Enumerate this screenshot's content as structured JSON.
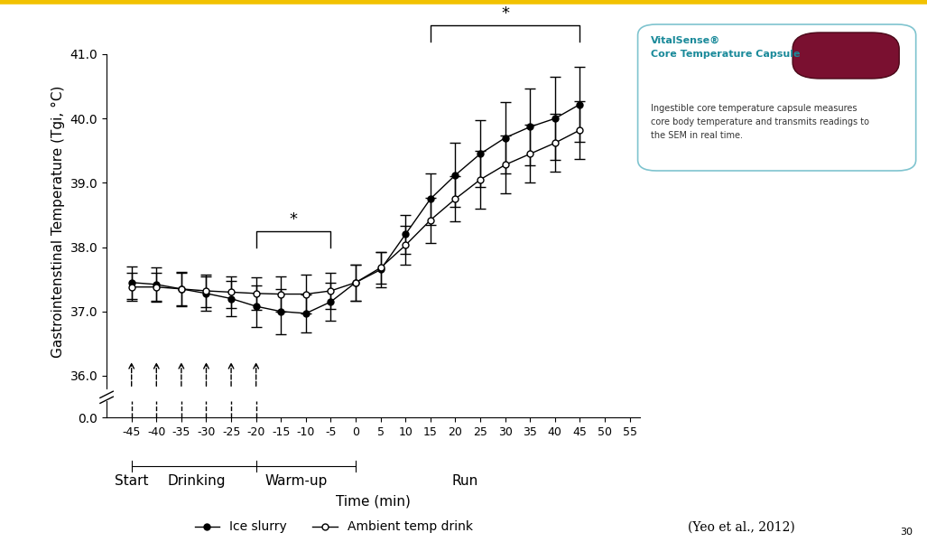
{
  "chart_data": {
    "type": "line",
    "ylabel": "Gastrointenstinal Temperature (Tgi, °C)",
    "xlabel": "Time (min)",
    "x": [
      -45,
      -40,
      -35,
      -30,
      -25,
      -20,
      -15,
      -10,
      -5,
      0,
      5,
      10,
      15,
      20,
      25,
      30,
      35,
      40,
      45
    ],
    "series": [
      {
        "name": "Ice slurry",
        "color": "#000000",
        "marker": "filled_circle",
        "line_style": "solid",
        "values": [
          37.45,
          37.42,
          37.35,
          37.28,
          37.2,
          37.08,
          37.0,
          36.97,
          37.15,
          37.45,
          37.65,
          38.2,
          38.75,
          39.12,
          39.45,
          39.7,
          39.87,
          40.0,
          40.22
        ],
        "errors": [
          0.25,
          0.27,
          0.27,
          0.27,
          0.28,
          0.32,
          0.35,
          0.3,
          0.3,
          0.28,
          0.28,
          0.3,
          0.4,
          0.5,
          0.52,
          0.55,
          0.6,
          0.65,
          0.58
        ]
      },
      {
        "name": "Ambient temp drink",
        "color": "#000000",
        "marker": "open_circle",
        "line_style": "solid",
        "values": [
          37.38,
          37.38,
          37.35,
          37.32,
          37.3,
          37.28,
          37.27,
          37.27,
          37.32,
          37.45,
          37.68,
          38.03,
          38.42,
          38.75,
          39.05,
          39.28,
          39.45,
          39.62,
          39.82
        ],
        "errors": [
          0.22,
          0.22,
          0.25,
          0.25,
          0.25,
          0.25,
          0.28,
          0.3,
          0.28,
          0.28,
          0.25,
          0.3,
          0.35,
          0.35,
          0.45,
          0.45,
          0.45,
          0.45,
          0.45
        ]
      }
    ],
    "xlim": [
      -50,
      57
    ],
    "xticks": [
      -45,
      -40,
      -35,
      -30,
      -25,
      -20,
      -15,
      -10,
      -5,
      0,
      5,
      10,
      15,
      20,
      25,
      30,
      35,
      40,
      45,
      50,
      55
    ],
    "ylim": [
      35.8,
      41.0
    ],
    "yticks": [
      {
        "value": 36,
        "label": "36.0"
      },
      {
        "value": 37,
        "label": "37.0"
      },
      {
        "value": 38,
        "label": "38.0"
      },
      {
        "value": 39,
        "label": "39.0"
      },
      {
        "value": 40,
        "label": "40.0"
      },
      {
        "value": 41,
        "label": "41.0"
      }
    ],
    "y_break": {
      "ylim": [
        0,
        0.6
      ],
      "yticks": [
        {
          "value": 0,
          "label": "0.0"
        }
      ]
    },
    "drink_times": [
      -45,
      -40,
      -35,
      -30,
      -25,
      -20
    ],
    "phases": [
      {
        "label": "Start",
        "x": -45
      },
      {
        "label": "Drinking",
        "x": -32
      },
      {
        "label": "Warm-up",
        "x": -12
      },
      {
        "label": "Run",
        "x": 22
      }
    ],
    "phase_boundaries": [
      -45,
      -20,
      0
    ],
    "significance": [
      {
        "x": [
          -20,
          -5
        ],
        "y": 38.25,
        "label": "*"
      },
      {
        "x": [
          15,
          45
        ],
        "y": 41.45,
        "label": "*"
      }
    ],
    "legend": "lower center",
    "grid": false,
    "inset": {
      "title": [
        "VitalSense®",
        "Core Temperature Capsule"
      ],
      "text": [
        "Ingestible core temperature capsule measures",
        "core body temperature and transmits readings to",
        "the SEM in real time."
      ]
    },
    "citation": "(Yeo et al., 2012)",
    "page_number": "30"
  }
}
